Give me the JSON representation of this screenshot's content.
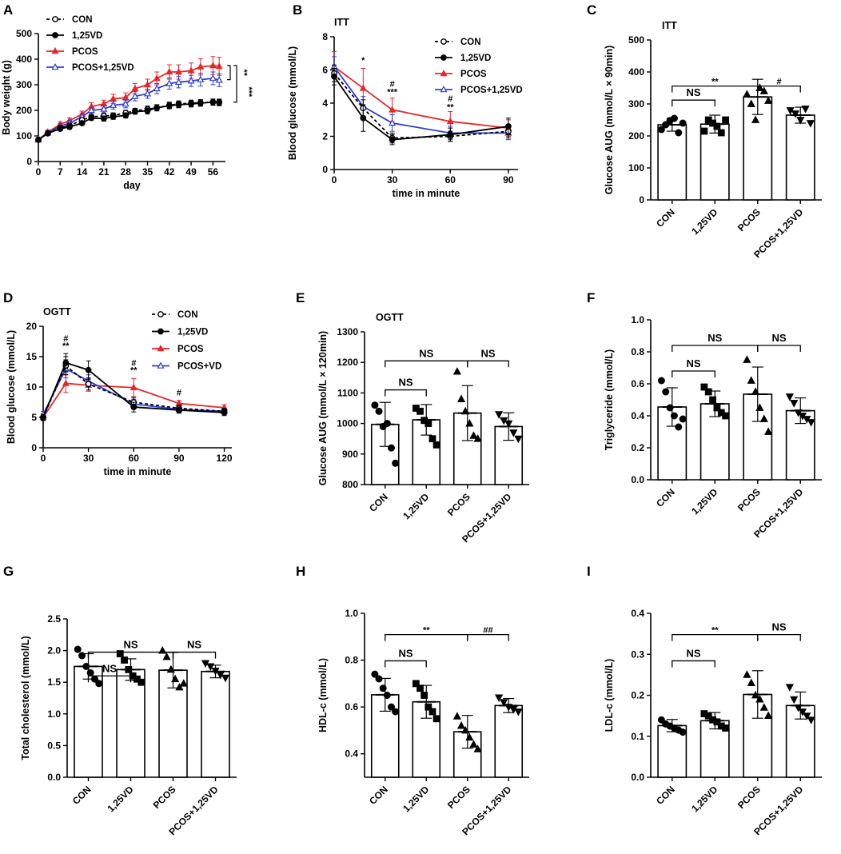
{
  "colors": {
    "con": "#000000",
    "vd": "#000000",
    "pcos": "#e8262a",
    "pcosvd": "#2b3fd6",
    "dots": "#000000"
  },
  "chart_data": [
    {
      "panel": "A",
      "type": "line",
      "title": "",
      "xlabel": "day",
      "ylabel": "Body weight (g)",
      "xlim": [
        0,
        60
      ],
      "ylim": [
        0,
        500
      ],
      "xticks": [
        "0",
        "7",
        "14",
        "21",
        "28",
        "35",
        "42",
        "49",
        "56"
      ],
      "yticks": [
        "0",
        "100",
        "200",
        "300",
        "400",
        "500"
      ],
      "x": [
        0,
        3,
        7,
        10,
        14,
        17,
        21,
        24,
        28,
        31,
        35,
        38,
        42,
        45,
        49,
        52,
        56,
        58
      ],
      "series": [
        {
          "name": "CON",
          "color_key": "con",
          "dashed": true,
          "marker": "circle-open",
          "values": [
            85,
            110,
            132,
            140,
            162,
            175,
            178,
            180,
            190,
            198,
            205,
            210,
            220,
            225,
            228,
            230,
            232,
            232
          ],
          "err": [
            6,
            6,
            8,
            8,
            8,
            8,
            10,
            10,
            10,
            10,
            12,
            12,
            12,
            12,
            12,
            12,
            12,
            12
          ]
        },
        {
          "name": "1,25VD",
          "color_key": "vd",
          "dashed": false,
          "marker": "circle",
          "values": [
            85,
            110,
            128,
            135,
            150,
            170,
            168,
            175,
            180,
            195,
            198,
            210,
            218,
            222,
            225,
            228,
            232,
            230
          ],
          "err": [
            6,
            6,
            8,
            8,
            8,
            8,
            10,
            10,
            10,
            10,
            12,
            12,
            12,
            12,
            12,
            12,
            12,
            12
          ]
        },
        {
          "name": "PCOS",
          "color_key": "pcos",
          "dashed": false,
          "marker": "triangle",
          "values": [
            85,
            115,
            145,
            160,
            185,
            215,
            225,
            245,
            250,
            285,
            300,
            325,
            350,
            350,
            355,
            370,
            375,
            372
          ],
          "err": [
            6,
            8,
            10,
            10,
            12,
            15,
            15,
            18,
            18,
            20,
            22,
            25,
            28,
            28,
            30,
            32,
            35,
            35
          ]
        },
        {
          "name": "PCOS+1,25VD",
          "color_key": "pcosvd",
          "dashed": false,
          "marker": "triangle-open",
          "values": [
            85,
            112,
            138,
            150,
            175,
            200,
            205,
            220,
            225,
            255,
            265,
            285,
            305,
            310,
            315,
            320,
            325,
            318
          ],
          "err": [
            6,
            8,
            10,
            10,
            12,
            12,
            14,
            15,
            15,
            18,
            18,
            20,
            22,
            22,
            22,
            25,
            25,
            25
          ]
        }
      ],
      "legend": [
        "CON",
        "1,25VD",
        "PCOS",
        "PCOS+1,25VD"
      ],
      "annotations": [
        "**",
        "***"
      ]
    },
    {
      "panel": "B",
      "type": "line",
      "title": "ITT",
      "xlabel": "time in minute",
      "ylabel": "Blood glucose (mmol/L)",
      "xlim": [
        0,
        95
      ],
      "ylim": [
        0,
        8
      ],
      "xticks": [
        "0",
        "30",
        "60",
        "90"
      ],
      "yticks": [
        "0",
        "2",
        "4",
        "6",
        "8"
      ],
      "x": [
        0,
        15,
        30,
        60,
        90
      ],
      "series": [
        {
          "name": "CON",
          "color_key": "con",
          "dashed": true,
          "marker": "circle-open",
          "values": [
            5.8,
            3.7,
            1.9,
            2.0,
            2.3
          ],
          "err": [
            0.5,
            0.5,
            0.3,
            0.3,
            0.4
          ]
        },
        {
          "name": "1,25VD",
          "color_key": "vd",
          "dashed": false,
          "marker": "circle",
          "values": [
            5.6,
            3.1,
            1.8,
            2.1,
            2.6
          ],
          "err": [
            0.5,
            0.8,
            0.3,
            0.4,
            0.5
          ]
        },
        {
          "name": "PCOS",
          "color_key": "pcos",
          "dashed": false,
          "marker": "triangle",
          "values": [
            6.2,
            4.9,
            3.6,
            2.9,
            2.5
          ],
          "err": [
            0.9,
            1.2,
            0.7,
            0.6,
            0.5
          ]
        },
        {
          "name": "PCOS+1,25VD",
          "color_key": "pcosvd",
          "dashed": false,
          "marker": "triangle-open",
          "values": [
            6.2,
            3.8,
            2.8,
            2.2,
            2.2
          ],
          "err": [
            0.6,
            0.6,
            0.5,
            0.4,
            0.4
          ]
        }
      ],
      "legend": [
        "CON",
        "1,25VD",
        "PCOS",
        "PCOS+1,25VD"
      ],
      "annotations": [
        {
          "x": 15,
          "y": 6.4,
          "text": "*"
        },
        {
          "x": 30,
          "y": 5.0,
          "text": "#"
        },
        {
          "x": 30,
          "y": 4.5,
          "text": "***"
        },
        {
          "x": 60,
          "y": 4.1,
          "text": "#"
        },
        {
          "x": 60,
          "y": 3.6,
          "text": "**"
        }
      ]
    },
    {
      "panel": "C",
      "type": "bar",
      "title": "ITT",
      "ylabel": "Glucose AUG (mmol/L × 90min)",
      "categories": [
        "CON",
        "1,25VD",
        "PCOS",
        "PCOS+1,25VD"
      ],
      "values": [
        235,
        237,
        322,
        265
      ],
      "err": [
        20,
        28,
        55,
        25
      ],
      "ylim": [
        0,
        500
      ],
      "yticks": [
        "0",
        "100",
        "200",
        "300",
        "400",
        "500"
      ],
      "points": [
        [
          220,
          235,
          248,
          255,
          210,
          240
        ],
        [
          215,
          250,
          240,
          230,
          210,
          250
        ],
        [
          330,
          300,
          250,
          350,
          340,
          310
        ],
        [
          280,
          270,
          250,
          285,
          240
        ]
      ],
      "markers": [
        "circle",
        "square",
        "triangle",
        "triangle-down"
      ],
      "comparisons": [
        {
          "a": 0,
          "b": 1,
          "level": 0,
          "text": "NS"
        },
        {
          "a": 0,
          "b": 2,
          "level": 1,
          "text": "**"
        },
        {
          "a": 2,
          "b": 3,
          "level": 1,
          "text": "#"
        }
      ]
    },
    {
      "panel": "D",
      "type": "line",
      "title": "OGTT",
      "xlabel": "time in minute",
      "ylabel": "Blood glucose (mmol/L)",
      "xlim": [
        0,
        125
      ],
      "ylim": [
        0,
        20
      ],
      "xticks": [
        "0",
        "30",
        "60",
        "90",
        "120"
      ],
      "yticks": [
        "0",
        "5",
        "10",
        "15",
        "20"
      ],
      "x": [
        0,
        15,
        30,
        60,
        90,
        120
      ],
      "series": [
        {
          "name": "CON",
          "color_key": "con",
          "dashed": true,
          "marker": "circle-open",
          "values": [
            5.0,
            13.5,
            10.5,
            7.5,
            6.5,
            6.0
          ],
          "err": [
            0.5,
            1.5,
            1.0,
            0.8,
            0.5,
            0.5
          ]
        },
        {
          "name": "1,25VD",
          "color_key": "vd",
          "dashed": false,
          "marker": "circle",
          "values": [
            5.0,
            14.0,
            12.8,
            6.7,
            6.2,
            5.8
          ],
          "err": [
            0.5,
            1.5,
            1.5,
            0.8,
            0.5,
            0.5
          ]
        },
        {
          "name": "PCOS",
          "color_key": "pcos",
          "dashed": false,
          "marker": "triangle",
          "values": [
            5.0,
            10.6,
            10.3,
            9.9,
            7.3,
            6.6
          ],
          "err": [
            0.5,
            1.5,
            1.0,
            1.5,
            0.5,
            0.5
          ]
        },
        {
          "name": "PCOS+VD",
          "color_key": "pcosvd",
          "dashed": false,
          "marker": "triangle-open",
          "values": [
            5.5,
            13.0,
            11.0,
            7.2,
            6.3,
            6.0
          ],
          "err": [
            0.5,
            1.5,
            1.0,
            0.8,
            0.5,
            0.5
          ]
        }
      ],
      "legend": [
        "CON",
        "1,25VD",
        "PCOS",
        "PCOS+VD"
      ],
      "annotations": [
        {
          "x": 15,
          "y": 17.5,
          "text": "#"
        },
        {
          "x": 15,
          "y": 16.3,
          "text": "**"
        },
        {
          "x": 60,
          "y": 13.5,
          "text": "#"
        },
        {
          "x": 60,
          "y": 12.3,
          "text": "**"
        },
        {
          "x": 90,
          "y": 8.6,
          "text": "#"
        }
      ]
    },
    {
      "panel": "E",
      "type": "bar",
      "title": "OGTT",
      "ylabel": "Glucose AUG (mmol/L × 120min)",
      "categories": [
        "CON",
        "1,25VD",
        "PCOS",
        "PCOS+1,25VD"
      ],
      "values": [
        997,
        1012,
        1034,
        990
      ],
      "err": [
        72,
        50,
        90,
        45
      ],
      "ylim": [
        800,
        1300
      ],
      "yticks": [
        "800",
        "900",
        "1000",
        "1100",
        "1200",
        "1300"
      ],
      "points": [
        [
          1060,
          1040,
          990,
          1000,
          920,
          870
        ],
        [
          1050,
          1040,
          1010,
          1000,
          950,
          930
        ],
        [
          1170,
          1080,
          1040,
          1000,
          960,
          950
        ],
        [
          1030,
          1010,
          1000,
          970,
          950
        ]
      ],
      "markers": [
        "circle",
        "square",
        "triangle",
        "triangle-down"
      ],
      "comparisons": [
        {
          "a": 0,
          "b": 1,
          "level": 0,
          "text": "NS"
        },
        {
          "a": 0,
          "b": 2,
          "level": 1,
          "text": "NS"
        },
        {
          "a": 2,
          "b": 3,
          "level": 1,
          "text": "NS"
        }
      ]
    },
    {
      "panel": "F",
      "type": "bar",
      "title": "",
      "ylabel": "Triglyceride (mmol/L)",
      "categories": [
        "CON",
        "1,25VD",
        "PCOS",
        "PCOS+1,25VD"
      ],
      "values": [
        0.455,
        0.475,
        0.535,
        0.432
      ],
      "err": [
        0.12,
        0.08,
        0.17,
        0.08
      ],
      "ylim": [
        0,
        1.0
      ],
      "yticks": [
        "0.0",
        "0.2",
        "0.4",
        "0.6",
        "0.8",
        "1.0"
      ],
      "points": [
        [
          0.62,
          0.55,
          0.45,
          0.4,
          0.33,
          0.38
        ],
        [
          0.58,
          0.55,
          0.5,
          0.45,
          0.42,
          0.4
        ],
        [
          0.75,
          0.62,
          0.55,
          0.45,
          0.38,
          0.3
        ],
        [
          0.52,
          0.48,
          0.42,
          0.4,
          0.38,
          0.36
        ]
      ],
      "markers": [
        "circle",
        "square",
        "triangle",
        "triangle-down"
      ],
      "comparisons": [
        {
          "a": 0,
          "b": 1,
          "level": 0,
          "text": "NS"
        },
        {
          "a": 0,
          "b": 2,
          "level": 1,
          "text": "NS"
        },
        {
          "a": 2,
          "b": 3,
          "level": 1,
          "text": "NS"
        }
      ]
    },
    {
      "panel": "G",
      "type": "bar",
      "title": "",
      "ylabel": "Total cholesterol (mmol/L)",
      "categories": [
        "CON",
        "1,25VD",
        "PCOS",
        "PCOS+1,25VD"
      ],
      "values": [
        1.75,
        1.7,
        1.69,
        1.67
      ],
      "err": [
        0.2,
        0.17,
        0.28,
        0.1
      ],
      "ylim": [
        0,
        2.5
      ],
      "yticks": [
        "0.0",
        "0.5",
        "1.0",
        "1.5",
        "2.0",
        "2.5"
      ],
      "points": [
        [
          2.02,
          1.92,
          1.75,
          1.65,
          1.55,
          1.48
        ],
        [
          1.95,
          1.85,
          1.7,
          1.6,
          1.55,
          1.5
        ],
        [
          2.0,
          1.9,
          1.7,
          1.55,
          1.42,
          1.48
        ],
        [
          1.8,
          1.75,
          1.68,
          1.62,
          1.57
        ]
      ],
      "markers": [
        "circle",
        "square",
        "triangle",
        "triangle-down"
      ],
      "comparisons": [
        {
          "a": 0,
          "b": 1,
          "level": 0,
          "text": "NS"
        },
        {
          "a": 0,
          "b": 2,
          "level": 1,
          "text": "NS"
        },
        {
          "a": 2,
          "b": 3,
          "level": 1,
          "text": "NS"
        }
      ]
    },
    {
      "panel": "H",
      "type": "bar",
      "title": "",
      "ylabel": "HDL-c (mmol/L)",
      "categories": [
        "CON",
        "1,25VD",
        "PCOS",
        "PCOS+1,25VD"
      ],
      "values": [
        0.652,
        0.622,
        0.494,
        0.606
      ],
      "err": [
        0.07,
        0.07,
        0.07,
        0.03
      ],
      "ylim": [
        0.3,
        1.0
      ],
      "yticks": [
        "0.4",
        "0.6",
        "0.8",
        "1.0"
      ],
      "points": [
        [
          0.74,
          0.72,
          0.68,
          0.65,
          0.6,
          0.58
        ],
        [
          0.7,
          0.68,
          0.65,
          0.6,
          0.58,
          0.55
        ],
        [
          0.56,
          0.52,
          0.5,
          0.47,
          0.44,
          0.42
        ],
        [
          0.64,
          0.62,
          0.6,
          0.59,
          0.58
        ]
      ],
      "markers": [
        "circle",
        "square",
        "triangle",
        "triangle-down"
      ],
      "comparisons": [
        {
          "a": 0,
          "b": 1,
          "level": 0,
          "text": "NS"
        },
        {
          "a": 0,
          "b": 2,
          "level": 1,
          "text": "**"
        },
        {
          "a": 2,
          "b": 3,
          "level": 1,
          "text": "##"
        }
      ]
    },
    {
      "panel": "I",
      "type": "bar",
      "title": "",
      "ylabel": "LDL-c (mmol/L)",
      "categories": [
        "CON",
        "1,25VD",
        "PCOS",
        "PCOS+1,25VD"
      ],
      "values": [
        0.126,
        0.138,
        0.202,
        0.175
      ],
      "err": [
        0.015,
        0.02,
        0.058,
        0.033
      ],
      "ylim": [
        0,
        0.4
      ],
      "yticks": [
        "0.0",
        "0.1",
        "0.2",
        "0.3",
        "0.4"
      ],
      "points": [
        [
          0.14,
          0.13,
          0.125,
          0.12,
          0.115,
          0.11
        ],
        [
          0.155,
          0.15,
          0.14,
          0.135,
          0.125,
          0.12
        ],
        [
          0.25,
          0.23,
          0.2,
          0.19,
          0.17,
          0.15
        ],
        [
          0.22,
          0.19,
          0.17,
          0.16,
          0.15,
          0.14
        ]
      ],
      "markers": [
        "circle",
        "square",
        "triangle",
        "triangle-down"
      ],
      "comparisons": [
        {
          "a": 0,
          "b": 1,
          "level": 0,
          "text": "NS"
        },
        {
          "a": 0,
          "b": 2,
          "level": 1,
          "text": "**"
        },
        {
          "a": 2,
          "b": 3,
          "level": 1,
          "text": "NS"
        }
      ]
    }
  ]
}
